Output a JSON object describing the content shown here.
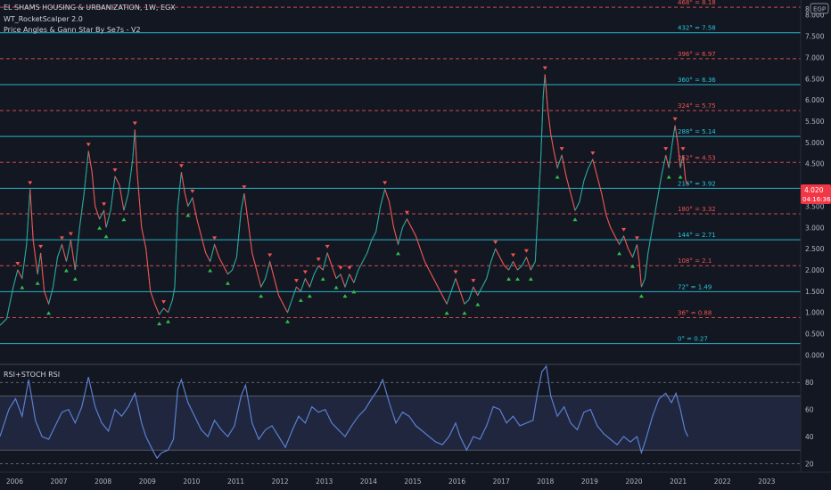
{
  "header": {
    "symbol_line": "EL SHAMS HOUSING & URBANIZATION, 1W, EGX",
    "indicator_1": "WT_RocketScalper 2.0",
    "indicator_2": "Price Angles & Gann Star By Se7s - V2"
  },
  "currency_badge": "EGP",
  "price_badge": {
    "price": "4.020",
    "countdown": "04:16:36"
  },
  "oscillator_title": "RSI+STOCH RSI",
  "colors": {
    "background": "#131722",
    "cyan_level": "#26c6da",
    "red_level": "#ef5350",
    "price_badge": "#f23645",
    "rsi_line": "#5b7fd1",
    "rsi_band": "#2a3354",
    "arrow_up": "#26a69a",
    "arrow_down": "#ef5350"
  },
  "chart_data": {
    "type": "line",
    "price_axis_ticks": [
      0.0,
      0.5,
      1.0,
      1.5,
      2.0,
      2.5,
      3.0,
      3.5,
      4.0,
      4.5,
      5.0,
      5.5,
      6.0,
      6.5,
      7.0,
      7.5,
      8.0
    ],
    "price_axis_tick_labels": [
      "0.000",
      "0.500",
      "1.000",
      "1.500",
      "2.000",
      "2.500",
      "3.000",
      "3.500",
      "",
      "4.500",
      "5.000",
      "5.500",
      "6.000",
      "6.500",
      "7.000",
      "7.500",
      "8.000"
    ],
    "price_axis_top_label": "8",
    "x_axis_labels": [
      "2006",
      "2007",
      "2008",
      "2009",
      "2010",
      "2011",
      "2012",
      "2013",
      "2014",
      "2015",
      "2016",
      "2017",
      "2018",
      "2019",
      "2020",
      "2021",
      "2022",
      "2023"
    ],
    "price_ylim": [
      -0.2,
      8.35
    ],
    "gann_levels": [
      {
        "label": "468° = 8.18",
        "value": 8.18,
        "style": "dashed-red"
      },
      {
        "label": "432° = 7.58",
        "value": 7.58,
        "style": "solid-cyan"
      },
      {
        "label": "396° = 6.97",
        "value": 6.97,
        "style": "dashed-red"
      },
      {
        "label": "360° = 6.36",
        "value": 6.36,
        "style": "solid-cyan"
      },
      {
        "label": "324° = 5.75",
        "value": 5.75,
        "style": "dashed-red"
      },
      {
        "label": "288° = 5.14",
        "value": 5.14,
        "style": "solid-cyan"
      },
      {
        "label": "252° = 4.53",
        "value": 4.53,
        "style": "dashed-red"
      },
      {
        "label": "216° = 3.92",
        "value": 3.92,
        "style": "solid-cyan"
      },
      {
        "label": "180° = 3.32",
        "value": 3.32,
        "style": "dashed-red"
      },
      {
        "label": "144° = 2.71",
        "value": 2.71,
        "style": "solid-cyan"
      },
      {
        "label": "108° = 2.1",
        "value": 2.1,
        "style": "dashed-red"
      },
      {
        "label": "72° = 1.49",
        "value": 1.49,
        "style": "solid-cyan"
      },
      {
        "label": "36° = 0.88",
        "value": 0.88,
        "style": "dashed-red"
      },
      {
        "label": "0° = 0.27",
        "value": 0.27,
        "style": "solid-cyan"
      }
    ],
    "price_series": [
      [
        2005.7,
        0.7
      ],
      [
        2005.85,
        0.85
      ],
      [
        2006.0,
        1.6
      ],
      [
        2006.1,
        2.0
      ],
      [
        2006.2,
        1.8
      ],
      [
        2006.3,
        2.6
      ],
      [
        2006.38,
        3.9
      ],
      [
        2006.45,
        2.7
      ],
      [
        2006.55,
        1.9
      ],
      [
        2006.62,
        2.4
      ],
      [
        2006.7,
        1.5
      ],
      [
        2006.8,
        1.2
      ],
      [
        2006.9,
        1.6
      ],
      [
        2007.0,
        2.3
      ],
      [
        2007.1,
        2.6
      ],
      [
        2007.2,
        2.2
      ],
      [
        2007.3,
        2.7
      ],
      [
        2007.4,
        2.0
      ],
      [
        2007.5,
        3.0
      ],
      [
        2007.6,
        3.8
      ],
      [
        2007.7,
        4.8
      ],
      [
        2007.78,
        4.3
      ],
      [
        2007.85,
        3.5
      ],
      [
        2007.95,
        3.2
      ],
      [
        2008.05,
        3.4
      ],
      [
        2008.1,
        3.0
      ],
      [
        2008.2,
        3.4
      ],
      [
        2008.3,
        4.2
      ],
      [
        2008.4,
        4.0
      ],
      [
        2008.5,
        3.4
      ],
      [
        2008.6,
        3.8
      ],
      [
        2008.7,
        4.6
      ],
      [
        2008.75,
        5.3
      ],
      [
        2008.8,
        4.3
      ],
      [
        2008.9,
        3.0
      ],
      [
        2009.0,
        2.5
      ],
      [
        2009.1,
        1.5
      ],
      [
        2009.2,
        1.2
      ],
      [
        2009.3,
        0.95
      ],
      [
        2009.4,
        1.1
      ],
      [
        2009.5,
        1.0
      ],
      [
        2009.6,
        1.3
      ],
      [
        2009.65,
        1.6
      ],
      [
        2009.72,
        3.5
      ],
      [
        2009.8,
        4.3
      ],
      [
        2009.88,
        3.8
      ],
      [
        2009.95,
        3.5
      ],
      [
        2010.05,
        3.7
      ],
      [
        2010.15,
        3.2
      ],
      [
        2010.25,
        2.8
      ],
      [
        2010.35,
        2.4
      ],
      [
        2010.45,
        2.2
      ],
      [
        2010.55,
        2.6
      ],
      [
        2010.65,
        2.3
      ],
      [
        2010.75,
        2.1
      ],
      [
        2010.85,
        1.9
      ],
      [
        2010.95,
        2.0
      ],
      [
        2011.05,
        2.3
      ],
      [
        2011.15,
        3.4
      ],
      [
        2011.22,
        3.8
      ],
      [
        2011.3,
        3.2
      ],
      [
        2011.4,
        2.4
      ],
      [
        2011.5,
        2.0
      ],
      [
        2011.6,
        1.6
      ],
      [
        2011.7,
        1.8
      ],
      [
        2011.8,
        2.2
      ],
      [
        2011.9,
        1.8
      ],
      [
        2012.0,
        1.4
      ],
      [
        2012.1,
        1.2
      ],
      [
        2012.2,
        1.0
      ],
      [
        2012.3,
        1.3
      ],
      [
        2012.4,
        1.6
      ],
      [
        2012.5,
        1.5
      ],
      [
        2012.6,
        1.8
      ],
      [
        2012.7,
        1.6
      ],
      [
        2012.8,
        1.9
      ],
      [
        2012.9,
        2.1
      ],
      [
        2013.0,
        2.0
      ],
      [
        2013.1,
        2.4
      ],
      [
        2013.2,
        2.1
      ],
      [
        2013.3,
        1.8
      ],
      [
        2013.4,
        1.9
      ],
      [
        2013.5,
        1.6
      ],
      [
        2013.6,
        1.9
      ],
      [
        2013.7,
        1.7
      ],
      [
        2013.8,
        2.0
      ],
      [
        2013.9,
        2.2
      ],
      [
        2014.0,
        2.4
      ],
      [
        2014.1,
        2.7
      ],
      [
        2014.2,
        2.9
      ],
      [
        2014.3,
        3.5
      ],
      [
        2014.4,
        3.9
      ],
      [
        2014.5,
        3.6
      ],
      [
        2014.6,
        3.0
      ],
      [
        2014.7,
        2.6
      ],
      [
        2014.8,
        3.0
      ],
      [
        2014.9,
        3.2
      ],
      [
        2015.0,
        3.0
      ],
      [
        2015.1,
        2.8
      ],
      [
        2015.2,
        2.5
      ],
      [
        2015.3,
        2.2
      ],
      [
        2015.4,
        2.0
      ],
      [
        2015.5,
        1.8
      ],
      [
        2015.6,
        1.6
      ],
      [
        2015.7,
        1.4
      ],
      [
        2015.8,
        1.2
      ],
      [
        2015.9,
        1.5
      ],
      [
        2016.0,
        1.8
      ],
      [
        2016.1,
        1.5
      ],
      [
        2016.2,
        1.2
      ],
      [
        2016.3,
        1.3
      ],
      [
        2016.4,
        1.6
      ],
      [
        2016.5,
        1.4
      ],
      [
        2016.6,
        1.6
      ],
      [
        2016.7,
        1.8
      ],
      [
        2016.8,
        2.2
      ],
      [
        2016.9,
        2.5
      ],
      [
        2017.0,
        2.3
      ],
      [
        2017.1,
        2.1
      ],
      [
        2017.2,
        2.0
      ],
      [
        2017.3,
        2.2
      ],
      [
        2017.4,
        2.0
      ],
      [
        2017.5,
        2.1
      ],
      [
        2017.6,
        2.3
      ],
      [
        2017.7,
        2.0
      ],
      [
        2017.8,
        2.2
      ],
      [
        2017.85,
        3.2
      ],
      [
        2017.92,
        4.5
      ],
      [
        2017.98,
        6.1
      ],
      [
        2018.02,
        6.6
      ],
      [
        2018.08,
        5.8
      ],
      [
        2018.15,
        5.2
      ],
      [
        2018.22,
        4.8
      ],
      [
        2018.3,
        4.4
      ],
      [
        2018.4,
        4.7
      ],
      [
        2018.5,
        4.2
      ],
      [
        2018.6,
        3.8
      ],
      [
        2018.7,
        3.4
      ],
      [
        2018.8,
        3.6
      ],
      [
        2018.9,
        4.1
      ],
      [
        2019.0,
        4.4
      ],
      [
        2019.1,
        4.6
      ],
      [
        2019.2,
        4.2
      ],
      [
        2019.3,
        3.8
      ],
      [
        2019.4,
        3.3
      ],
      [
        2019.5,
        3.0
      ],
      [
        2019.6,
        2.8
      ],
      [
        2019.7,
        2.6
      ],
      [
        2019.8,
        2.8
      ],
      [
        2019.9,
        2.5
      ],
      [
        2020.0,
        2.3
      ],
      [
        2020.1,
        2.6
      ],
      [
        2020.15,
        2.2
      ],
      [
        2020.2,
        1.6
      ],
      [
        2020.28,
        1.8
      ],
      [
        2020.35,
        2.4
      ],
      [
        2020.45,
        3.0
      ],
      [
        2020.55,
        3.6
      ],
      [
        2020.65,
        4.2
      ],
      [
        2020.75,
        4.7
      ],
      [
        2020.82,
        4.4
      ],
      [
        2020.9,
        5.0
      ],
      [
        2020.96,
        5.4
      ],
      [
        2021.02,
        5.0
      ],
      [
        2021.08,
        4.4
      ],
      [
        2021.14,
        4.7
      ],
      [
        2021.2,
        4.1
      ],
      [
        2021.25,
        4.02
      ]
    ],
    "rsi_axis_ticks": [
      20,
      40,
      60,
      80
    ],
    "rsi_ylim": [
      15,
      92
    ],
    "rsi_band": [
      30,
      70
    ],
    "rsi_series": [
      [
        2005.7,
        40
      ],
      [
        2005.9,
        60
      ],
      [
        2006.05,
        68
      ],
      [
        2006.2,
        55
      ],
      [
        2006.35,
        82
      ],
      [
        2006.5,
        52
      ],
      [
        2006.65,
        40
      ],
      [
        2006.8,
        38
      ],
      [
        2006.95,
        48
      ],
      [
        2007.1,
        58
      ],
      [
        2007.25,
        60
      ],
      [
        2007.4,
        50
      ],
      [
        2007.55,
        62
      ],
      [
        2007.7,
        84
      ],
      [
        2007.85,
        62
      ],
      [
        2008.0,
        50
      ],
      [
        2008.15,
        44
      ],
      [
        2008.3,
        60
      ],
      [
        2008.45,
        55
      ],
      [
        2008.6,
        62
      ],
      [
        2008.75,
        72
      ],
      [
        2008.9,
        50
      ],
      [
        2009.0,
        40
      ],
      [
        2009.15,
        30
      ],
      [
        2009.25,
        24
      ],
      [
        2009.35,
        28
      ],
      [
        2009.5,
        30
      ],
      [
        2009.62,
        38
      ],
      [
        2009.72,
        75
      ],
      [
        2009.8,
        82
      ],
      [
        2009.95,
        65
      ],
      [
        2010.1,
        55
      ],
      [
        2010.25,
        45
      ],
      [
        2010.4,
        40
      ],
      [
        2010.55,
        52
      ],
      [
        2010.7,
        45
      ],
      [
        2010.85,
        40
      ],
      [
        2011.0,
        48
      ],
      [
        2011.15,
        70
      ],
      [
        2011.25,
        78
      ],
      [
        2011.4,
        50
      ],
      [
        2011.55,
        38
      ],
      [
        2011.7,
        45
      ],
      [
        2011.85,
        48
      ],
      [
        2012.0,
        40
      ],
      [
        2012.15,
        32
      ],
      [
        2012.3,
        44
      ],
      [
        2012.45,
        55
      ],
      [
        2012.6,
        50
      ],
      [
        2012.75,
        62
      ],
      [
        2012.9,
        58
      ],
      [
        2013.05,
        60
      ],
      [
        2013.2,
        50
      ],
      [
        2013.35,
        45
      ],
      [
        2013.5,
        40
      ],
      [
        2013.65,
        48
      ],
      [
        2013.8,
        55
      ],
      [
        2013.95,
        60
      ],
      [
        2014.1,
        68
      ],
      [
        2014.25,
        75
      ],
      [
        2014.35,
        82
      ],
      [
        2014.5,
        65
      ],
      [
        2014.65,
        50
      ],
      [
        2014.8,
        58
      ],
      [
        2014.95,
        55
      ],
      [
        2015.1,
        48
      ],
      [
        2015.25,
        44
      ],
      [
        2015.4,
        40
      ],
      [
        2015.55,
        36
      ],
      [
        2015.7,
        34
      ],
      [
        2015.85,
        40
      ],
      [
        2016.0,
        50
      ],
      [
        2016.1,
        40
      ],
      [
        2016.25,
        30
      ],
      [
        2016.4,
        40
      ],
      [
        2016.55,
        38
      ],
      [
        2016.7,
        48
      ],
      [
        2016.85,
        62
      ],
      [
        2017.0,
        60
      ],
      [
        2017.15,
        50
      ],
      [
        2017.3,
        55
      ],
      [
        2017.45,
        48
      ],
      [
        2017.6,
        50
      ],
      [
        2017.75,
        52
      ],
      [
        2017.85,
        72
      ],
      [
        2017.95,
        88
      ],
      [
        2018.05,
        92
      ],
      [
        2018.15,
        70
      ],
      [
        2018.3,
        55
      ],
      [
        2018.45,
        62
      ],
      [
        2018.6,
        50
      ],
      [
        2018.75,
        45
      ],
      [
        2018.9,
        58
      ],
      [
        2019.05,
        60
      ],
      [
        2019.2,
        48
      ],
      [
        2019.35,
        42
      ],
      [
        2019.5,
        38
      ],
      [
        2019.65,
        34
      ],
      [
        2019.8,
        40
      ],
      [
        2019.95,
        36
      ],
      [
        2020.1,
        40
      ],
      [
        2020.2,
        28
      ],
      [
        2020.3,
        38
      ],
      [
        2020.45,
        55
      ],
      [
        2020.6,
        68
      ],
      [
        2020.75,
        72
      ],
      [
        2020.88,
        65
      ],
      [
        2020.98,
        72
      ],
      [
        2021.08,
        60
      ],
      [
        2021.18,
        45
      ],
      [
        2021.25,
        40
      ]
    ],
    "grid": false,
    "legend": "top-left"
  }
}
